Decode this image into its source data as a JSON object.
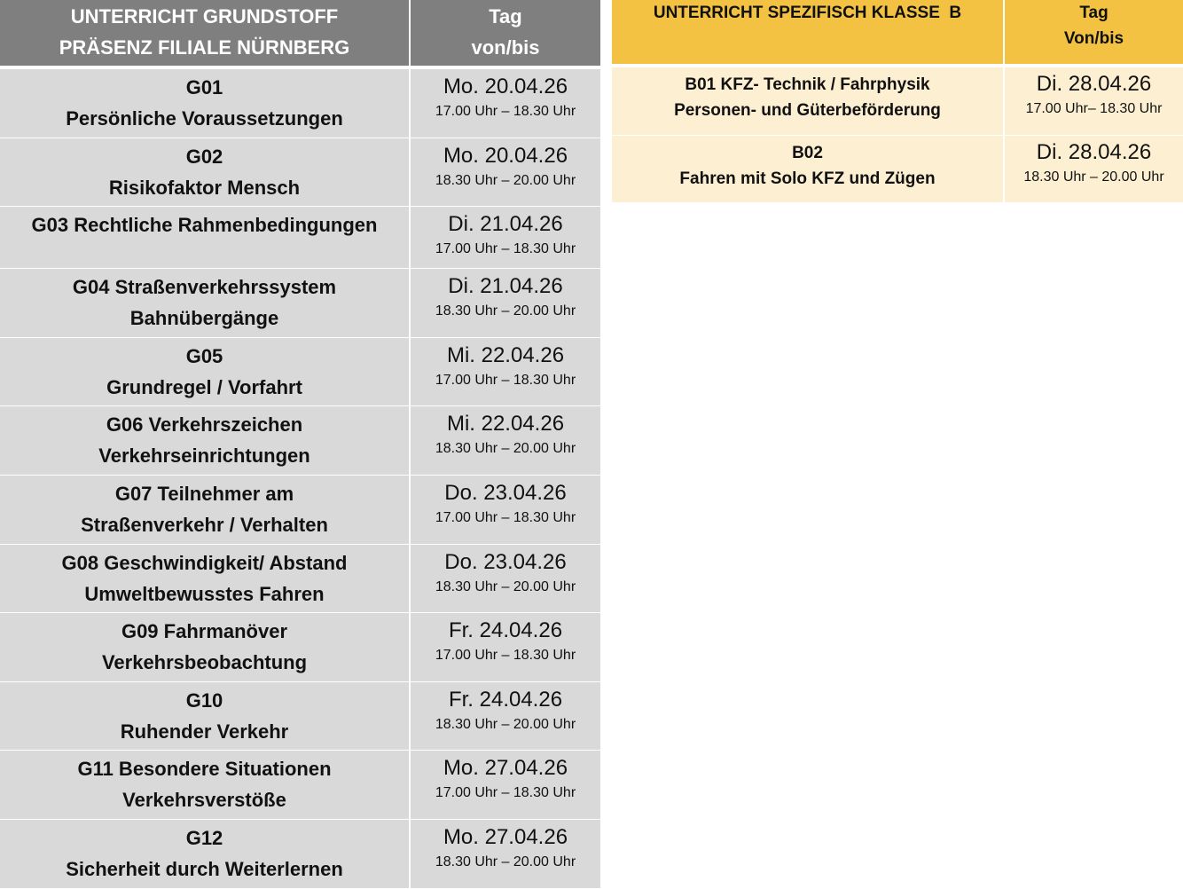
{
  "grundstoff": {
    "header": {
      "title_line1": "UNTERRICHT GRUNDSTOFF",
      "title_line2": "PRÄSENZ FILIALE NÜRNBERG",
      "date_line1": "Tag",
      "date_line2": "von/bis"
    },
    "colors": {
      "header": "#7f7f7f",
      "row": "#d9d9d9"
    },
    "rows": [
      {
        "line1": "G01",
        "line2": "Persönliche Voraussetzungen",
        "date": "Mo. 20.04.26",
        "time": "17.00 Uhr – 18.30 Uhr"
      },
      {
        "line1": "G02",
        "line2": "Risikofaktor Mensch",
        "date": "Mo. 20.04.26",
        "time": "18.30 Uhr – 20.00 Uhr"
      },
      {
        "line1": "G03 Rechtliche Rahmenbedingungen",
        "line2": "",
        "date": "Di. 21.04.26",
        "time": "17.00 Uhr – 18.30 Uhr"
      },
      {
        "line1": "G04 Straßenverkehrssystem",
        "line2": "Bahnübergänge",
        "date": "Di. 21.04.26",
        "time": "18.30 Uhr – 20.00 Uhr"
      },
      {
        "line1": "G05",
        "line2": "Grundregel / Vorfahrt",
        "date": "Mi. 22.04.26",
        "time": "17.00 Uhr – 18.30 Uhr"
      },
      {
        "line1": "G06 Verkehrszeichen",
        "line2": "Verkehrseinrichtungen",
        "date": "Mi. 22.04.26",
        "time": "18.30 Uhr – 20.00 Uhr"
      },
      {
        "line1": "G07 Teilnehmer am",
        "line2": "Straßenverkehr / Verhalten",
        "date": "Do. 23.04.26",
        "time": "17.00 Uhr – 18.30 Uhr"
      },
      {
        "line1": "G08 Geschwindigkeit/ Abstand",
        "line2": "Umweltbewusstes Fahren",
        "date": "Do. 23.04.26",
        "time": "18.30 Uhr – 20.00 Uhr"
      },
      {
        "line1": "G09 Fahrmanöver",
        "line2": "Verkehrsbeobachtung",
        "date": "Fr. 24.04.26",
        "time": "17.00 Uhr – 18.30 Uhr"
      },
      {
        "line1": "G10",
        "line2": "Ruhender Verkehr",
        "date": "Fr. 24.04.26",
        "time": "18.30 Uhr – 20.00 Uhr"
      },
      {
        "line1": "G11 Besondere Situationen",
        "line2": "Verkehrsverstöße",
        "date": "Mo. 27.04.26",
        "time": "17.00 Uhr – 18.30 Uhr"
      },
      {
        "line1": "G12",
        "line2": "Sicherheit durch Weiterlernen",
        "date": "Mo. 27.04.26",
        "time": "18.30 Uhr – 20.00 Uhr"
      }
    ]
  },
  "klasse_b": {
    "header": {
      "title_line1": "UNTERRICHT SPEZIFISCH KLASSE  B",
      "date_line1": "Tag",
      "date_line2": "Von/bis"
    },
    "colors": {
      "header": "#f4c242",
      "row": "#fdf0d2"
    },
    "rows": [
      {
        "line1": "B01 KFZ- Technik / Fahrphysik",
        "line2": "Personen- und Güterbeförderung",
        "date": "Di. 28.04.26",
        "time": "17.00 Uhr– 18.30 Uhr"
      },
      {
        "line1": "B02",
        "line2": "Fahren mit Solo KFZ und Zügen",
        "date": "Di. 28.04.26",
        "time": "18.30 Uhr – 20.00 Uhr"
      }
    ]
  }
}
